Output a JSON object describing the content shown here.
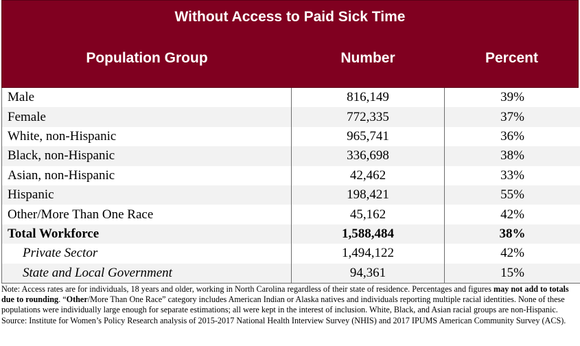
{
  "header": {
    "title": "Without Access to Paid Sick Time",
    "columns": [
      "Population Group",
      "Number",
      "Percent"
    ]
  },
  "rows": [
    {
      "group": "Male",
      "number": "816,149",
      "percent": "39%"
    },
    {
      "group": "Female",
      "number": "772,335",
      "percent": "37%"
    },
    {
      "group": "White, non-Hispanic",
      "number": "965,741",
      "percent": "36%"
    },
    {
      "group": "Black, non-Hispanic",
      "number": "336,698",
      "percent": "38%"
    },
    {
      "group": "Asian, non-Hispanic",
      "number": "42,462",
      "percent": "33%"
    },
    {
      "group": "Hispanic",
      "number": "198,421",
      "percent": "55%"
    },
    {
      "group": "Other/More Than One Race",
      "number": "45,162",
      "percent": "42%"
    },
    {
      "group": "Total Workforce",
      "number": "1,588,484",
      "percent": "38%"
    },
    {
      "group": "Private Sector",
      "number": "1,494,122",
      "percent": "42%"
    },
    {
      "group": "State and Local Government",
      "number": "94,361",
      "percent": "15%"
    }
  ],
  "note": {
    "part1": "Note: Access rates are for individuals, 18 years and older, working in North Carolina regardless of their state of residence. Percentages and figures ",
    "bold1": "may not add to totals due to rounding",
    "part2": ". “",
    "bold2": "Other",
    "part3": "/More Than One Race” category includes American Indian or Alaska natives and individuals reporting multiple racial identities. None of these populations were individually large enough for separate estimations; all were kept in the interest of inclusion. White, Black, and Asian racial groups are non-Hispanic. Source: Institute for Women’s Policy Research analysis of 2015-2017 National Health Interview Survey (NHIS) and 2017 IPUMS American Community Survey (ACS)."
  }
}
